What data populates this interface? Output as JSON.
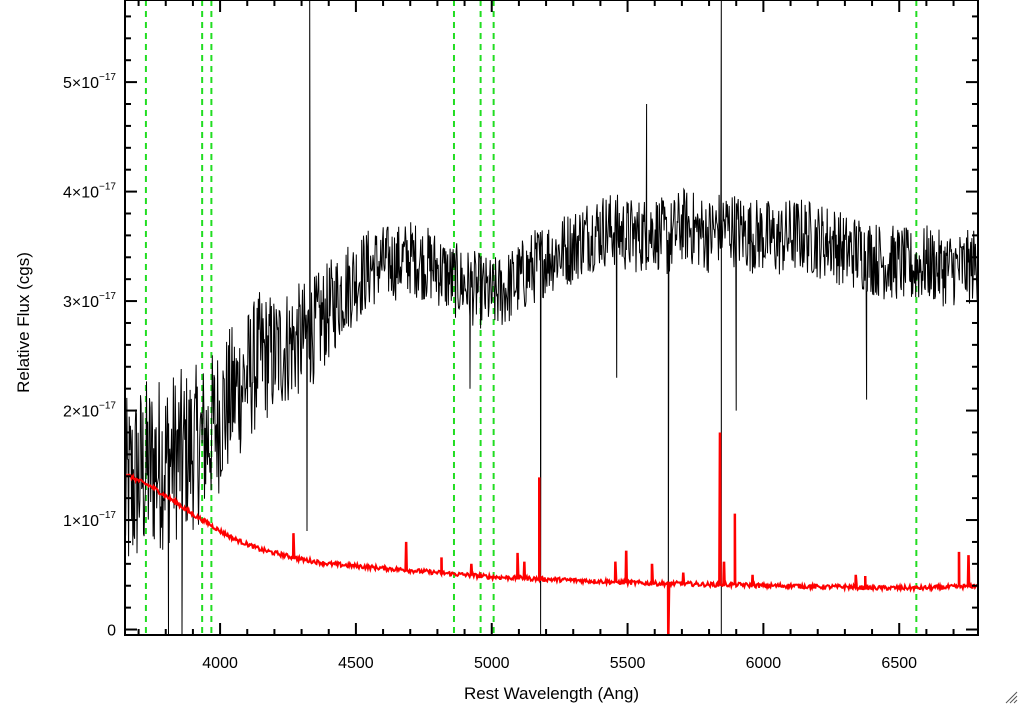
{
  "chart_data": {
    "type": "line",
    "title": "",
    "xlabel": "Rest Wavelength (Ang)",
    "ylabel": "Relative Flux (cgs)",
    "xlim": [
      3650,
      6790
    ],
    "ylim": [
      -5e-19,
      5.75e-17
    ],
    "xticks": [
      4000,
      4500,
      5000,
      5500,
      6000,
      6500
    ],
    "xtick_labels": [
      "4000",
      "4500",
      "5000",
      "5500",
      "6000",
      "6500"
    ],
    "yticks": [
      0,
      1e-17,
      2e-17,
      3e-17,
      4e-17,
      5e-17
    ],
    "ytick_labels": [
      {
        "mantissa": "0",
        "exponent": ""
      },
      {
        "mantissa": "1×10",
        "exponent": "−17"
      },
      {
        "mantissa": "2×10",
        "exponent": "−17"
      },
      {
        "mantissa": "3×10",
        "exponent": "−17"
      },
      {
        "mantissa": "4×10",
        "exponent": "−17"
      },
      {
        "mantissa": "5×10",
        "exponent": "−17"
      }
    ],
    "grid": false,
    "legend": "none",
    "series": [
      {
        "color": "#000000",
        "x": [
          3650,
          3700,
          3750,
          3800,
          3850,
          3900,
          3950,
          4000,
          4050,
          4100,
          4150,
          4200,
          4250,
          4300,
          4350,
          4400,
          4450,
          4500,
          4550,
          4600,
          4650,
          4700,
          4750,
          4800,
          4850,
          4900,
          4950,
          5000,
          5050,
          5100,
          5150,
          5200,
          5250,
          5300,
          5350,
          5400,
          5450,
          5500,
          5550,
          5600,
          5650,
          5700,
          5750,
          5800,
          5850,
          5900,
          5950,
          6000,
          6050,
          6100,
          6150,
          6200,
          6250,
          6300,
          6350,
          6400,
          6450,
          6500,
          6550,
          6600,
          6650,
          6700,
          6750,
          6790
        ],
        "y": [
          1.2,
          1.4,
          1.5,
          1.55,
          1.6,
          1.65,
          1.75,
          1.95,
          2.15,
          2.3,
          2.5,
          2.5,
          2.6,
          2.65,
          2.75,
          2.9,
          3.1,
          3.2,
          3.3,
          3.35,
          3.35,
          3.4,
          3.35,
          3.3,
          3.2,
          3.15,
          3.1,
          3.05,
          3.1,
          3.2,
          3.3,
          3.4,
          3.45,
          3.5,
          3.6,
          3.65,
          3.65,
          3.6,
          3.6,
          3.65,
          3.55,
          3.7,
          3.65,
          3.6,
          3.7,
          3.65,
          3.6,
          3.6,
          3.55,
          3.6,
          3.6,
          3.55,
          3.55,
          3.45,
          3.45,
          3.4,
          3.35,
          3.35,
          3.3,
          3.35,
          3.3,
          3.3,
          3.3,
          3.35
        ],
        "noise_amplitude_blue": 0.9,
        "noise_amplitude_red": 0.35,
        "spikes": [
          {
            "x": 4330,
            "y": 5.75
          },
          {
            "x": 4320,
            "y": 0.9
          },
          {
            "x": 5180,
            "y": -0.05
          },
          {
            "x": 5650,
            "y": -0.05
          },
          {
            "x": 5845,
            "y": 5.75
          },
          {
            "x": 5845,
            "y": -0.05
          },
          {
            "x": 5900,
            "y": 2.0
          },
          {
            "x": 3860,
            "y": -0.05
          },
          {
            "x": 3810,
            "y": -0.05
          },
          {
            "x": 4920,
            "y": 2.2
          },
          {
            "x": 6380,
            "y": 2.1
          },
          {
            "x": 5460,
            "y": 2.3
          },
          {
            "x": 5570,
            "y": 4.8
          }
        ]
      },
      {
        "color": "#ff0000",
        "x": [
          3650,
          3700,
          3750,
          3800,
          3850,
          3900,
          3950,
          4000,
          4050,
          4100,
          4150,
          4200,
          4250,
          4300,
          4350,
          4400,
          4450,
          4500,
          4550,
          4600,
          4650,
          4700,
          4750,
          4800,
          4850,
          4900,
          4950,
          5000,
          5100,
          5200,
          5300,
          5400,
          5500,
          5600,
          5700,
          5800,
          5900,
          6000,
          6100,
          6200,
          6300,
          6400,
          6500,
          6600,
          6700,
          6790
        ],
        "y": [
          1.42,
          1.36,
          1.3,
          1.22,
          1.14,
          1.05,
          0.98,
          0.9,
          0.83,
          0.78,
          0.73,
          0.7,
          0.67,
          0.64,
          0.62,
          0.6,
          0.59,
          0.58,
          0.57,
          0.56,
          0.55,
          0.54,
          0.53,
          0.52,
          0.51,
          0.5,
          0.49,
          0.48,
          0.47,
          0.46,
          0.45,
          0.44,
          0.43,
          0.42,
          0.42,
          0.41,
          0.41,
          0.4,
          0.4,
          0.39,
          0.39,
          0.38,
          0.38,
          0.38,
          0.39,
          0.4
        ],
        "spikes": [
          {
            "x": 4270,
            "y": 0.88
          },
          {
            "x": 4685,
            "y": 0.8
          },
          {
            "x": 4815,
            "y": 0.65
          },
          {
            "x": 4925,
            "y": 0.6
          },
          {
            "x": 5095,
            "y": 0.7
          },
          {
            "x": 5120,
            "y": 0.62
          },
          {
            "x": 5175,
            "y": 1.38
          },
          {
            "x": 5455,
            "y": 0.62
          },
          {
            "x": 5495,
            "y": 0.72
          },
          {
            "x": 5590,
            "y": 0.6
          },
          {
            "x": 5650,
            "y": -0.05
          },
          {
            "x": 5705,
            "y": 0.52
          },
          {
            "x": 5840,
            "y": 1.8
          },
          {
            "x": 5855,
            "y": 0.62
          },
          {
            "x": 5895,
            "y": 1.05
          },
          {
            "x": 5960,
            "y": 0.5
          },
          {
            "x": 6340,
            "y": 0.5
          },
          {
            "x": 6375,
            "y": 0.48
          },
          {
            "x": 6720,
            "y": 0.7
          },
          {
            "x": 6755,
            "y": 0.68
          }
        ]
      }
    ],
    "vlines": {
      "color": "#22dd22",
      "style": "dashed",
      "x": [
        3727,
        3934,
        3968,
        4861,
        4959,
        5007,
        6563
      ]
    }
  }
}
